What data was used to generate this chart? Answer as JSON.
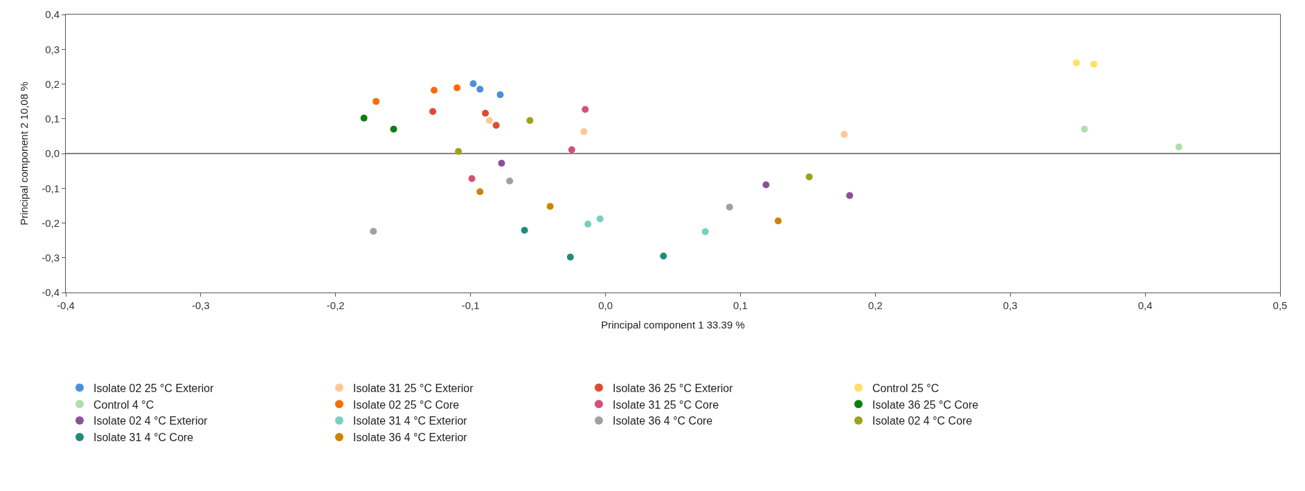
{
  "chart_data": {
    "type": "scatter",
    "xlabel": "Principal component 1 33.39 %",
    "ylabel": "Principal component 2 10,08 %",
    "xlim": [
      -0.4,
      0.5
    ],
    "ylim": [
      -0.4,
      0.4
    ],
    "xticks": [
      {
        "value": -0.4,
        "label": "-0,4"
      },
      {
        "value": -0.3,
        "label": "-0,3"
      },
      {
        "value": -0.2,
        "label": "-0,2"
      },
      {
        "value": -0.1,
        "label": "-0,1"
      },
      {
        "value": 0,
        "label": "0,0"
      },
      {
        "value": 0.1,
        "label": "0,1"
      },
      {
        "value": 0.2,
        "label": "0,2"
      },
      {
        "value": 0.3,
        "label": "0,3"
      },
      {
        "value": 0.4,
        "label": "0,4"
      },
      {
        "value": 0.5,
        "label": "0,5"
      }
    ],
    "yticks": [
      {
        "value": -0.4,
        "label": "-0,4"
      },
      {
        "value": -0.3,
        "label": "-0,3"
      },
      {
        "value": -0.2,
        "label": "-0,2"
      },
      {
        "value": -0.1,
        "label": "-0,1"
      },
      {
        "value": 0,
        "label": "0,0"
      },
      {
        "value": 0.1,
        "label": "0,1"
      },
      {
        "value": 0.2,
        "label": "0,2"
      },
      {
        "value": 0.3,
        "label": "0,3"
      },
      {
        "value": 0.4,
        "label": "0,4"
      }
    ],
    "grid": false,
    "legend": "bottom",
    "marker": "circle",
    "ref_lines": [
      {
        "axis": "y",
        "value": 0,
        "color": "#595959"
      }
    ],
    "series": [
      {
        "name": "Isolate 02 25 °C Exterior",
        "color": "#4a90d9",
        "x": [
          -0.098,
          -0.093,
          -0.078
        ],
        "values": [
          0.201,
          0.185,
          0.169
        ]
      },
      {
        "name": "Isolate 31 25 °C Exterior",
        "color": "#ffc896",
        "x": [
          -0.086,
          -0.016,
          0.177
        ],
        "values": [
          0.095,
          0.063,
          0.055
        ]
      },
      {
        "name": "Isolate 36 25 °C Exterior",
        "color": "#e04a33",
        "x": [
          -0.128,
          -0.089,
          -0.081
        ],
        "values": [
          0.121,
          0.116,
          0.081
        ]
      },
      {
        "name": "Control 25 °C",
        "color": "#ffe066",
        "x": [
          0.349,
          0.362
        ],
        "values": [
          0.261,
          0.257
        ]
      },
      {
        "name": "Control 4 °C",
        "color": "#aee0aa",
        "x": [
          0.355,
          0.425
        ],
        "values": [
          0.07,
          0.019
        ]
      },
      {
        "name": "Isolate 02 25 °C Core",
        "color": "#ff6a00",
        "x": [
          -0.17,
          -0.127,
          -0.11
        ],
        "values": [
          0.15,
          0.182,
          0.189
        ]
      },
      {
        "name": "Isolate 31 25 °C Core",
        "color": "#d4507a",
        "x": [
          -0.015,
          -0.025,
          -0.099
        ],
        "values": [
          0.127,
          0.011,
          -0.072
        ]
      },
      {
        "name": "Isolate 36 25 °C Core",
        "color": "#0e7f0e",
        "x": [
          -0.179,
          -0.157
        ],
        "values": [
          0.102,
          0.07
        ]
      },
      {
        "name": "Isolate 02 4 °C Exterior",
        "color": "#8c4f9e",
        "x": [
          -0.077,
          0.119,
          0.181
        ],
        "values": [
          -0.028,
          -0.09,
          -0.121
        ]
      },
      {
        "name": "Isolate 31 4 °C Exterior",
        "color": "#76d0c0",
        "x": [
          -0.013,
          -0.004,
          0.074
        ],
        "values": [
          -0.203,
          -0.188,
          -0.225
        ]
      },
      {
        "name": "Isolate 36 4 °C Core",
        "color": "#a0a0a0",
        "x": [
          -0.071,
          -0.172,
          0.092
        ],
        "values": [
          -0.079,
          -0.224,
          -0.154
        ]
      },
      {
        "name": "Isolate 02 4 °C Core",
        "color": "#9aa31a",
        "x": [
          -0.056,
          -0.109,
          0.151
        ],
        "values": [
          0.095,
          0.006,
          -0.067
        ]
      },
      {
        "name": "Isolate 31 4 °C Core",
        "color": "#1f8c7c",
        "x": [
          -0.06,
          -0.026,
          0.043
        ],
        "values": [
          -0.221,
          -0.298,
          -0.295
        ]
      },
      {
        "name": "Isolate 36 4 °C Exterior",
        "color": "#cc8400",
        "x": [
          -0.093,
          -0.041,
          0.128
        ],
        "values": [
          -0.11,
          -0.152,
          -0.194
        ]
      }
    ]
  }
}
